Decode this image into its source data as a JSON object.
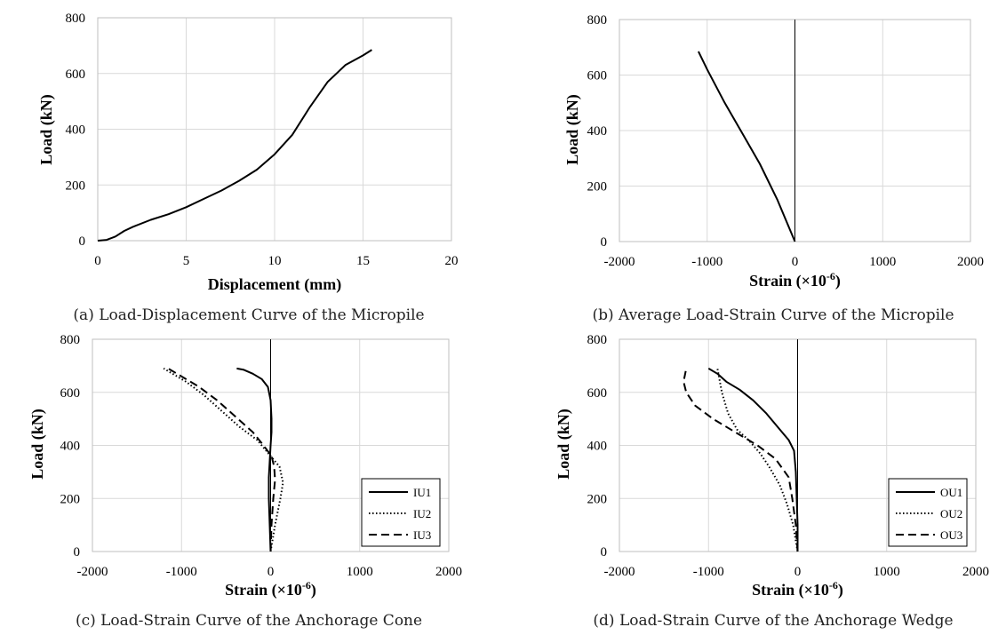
{
  "chart_data": [
    {
      "type": "line",
      "caption": "(a) Load-Displacement Curve of the Micropile",
      "xlabel": "Displacement (mm)",
      "ylabel": "Load (kN)",
      "xlim": [
        0,
        20
      ],
      "ylim": [
        0,
        800
      ],
      "xticks": [
        "0",
        "5",
        "10",
        "15",
        "20"
      ],
      "yticks": [
        "0",
        "200",
        "400",
        "600",
        "800"
      ],
      "grid": true,
      "legend": null,
      "series": [
        {
          "style": "solid",
          "x": [
            0,
            0.5,
            1,
            1.5,
            2,
            3,
            4,
            5,
            6,
            7,
            8,
            9,
            10,
            11,
            12,
            13,
            14,
            15,
            15.5
          ],
          "y": [
            0,
            3,
            15,
            35,
            50,
            75,
            95,
            120,
            150,
            180,
            215,
            255,
            310,
            380,
            480,
            570,
            630,
            665,
            685
          ]
        }
      ]
    },
    {
      "type": "line",
      "caption": "(b) Average Load-Strain Curve of the Micropile",
      "xlabel": "Strain (×10",
      "xlabel_sup": "-6",
      "xlabel_tail": ")",
      "ylabel": "Load (kN)",
      "xlim": [
        -2000,
        2000
      ],
      "ylim": [
        0,
        800
      ],
      "xticks": [
        "-2000",
        "-1000",
        "0",
        "1000",
        "2000"
      ],
      "yticks": [
        "0",
        "200",
        "400",
        "600",
        "800"
      ],
      "grid": true,
      "legend": null,
      "series": [
        {
          "style": "solid",
          "x": [
            0,
            -200,
            -400,
            -600,
            -800,
            -1000,
            -1100
          ],
          "y": [
            0,
            150,
            280,
            390,
            500,
            620,
            685
          ]
        }
      ]
    },
    {
      "type": "line",
      "caption": "(c) Load-Strain Curve of the Anchorage Cone",
      "xlabel": "Strain (×10",
      "xlabel_sup": "-6",
      "xlabel_tail": ")",
      "ylabel": "Load (kN)",
      "xlim": [
        -2000,
        2000
      ],
      "ylim": [
        0,
        800
      ],
      "xticks": [
        "-2000",
        "-1000",
        "0",
        "1000",
        "2000"
      ],
      "yticks": [
        "0",
        "200",
        "400",
        "600",
        "800"
      ],
      "grid": true,
      "legend": "bottom-right",
      "series": [
        {
          "name": "IU1",
          "style": "solid",
          "x": [
            0,
            -10,
            -20,
            -20,
            -10,
            0,
            10,
            10,
            0,
            -30,
            -100,
            -200,
            -300,
            -380
          ],
          "y": [
            0,
            100,
            200,
            280,
            340,
            400,
            450,
            500,
            570,
            620,
            650,
            670,
            685,
            690
          ]
        },
        {
          "name": "IU2",
          "style": "dotted",
          "x": [
            0,
            50,
            110,
            140,
            100,
            0,
            -150,
            -350,
            -550,
            -750,
            -950,
            -1100,
            -1200
          ],
          "y": [
            0,
            100,
            200,
            260,
            320,
            360,
            420,
            470,
            530,
            590,
            640,
            670,
            690
          ]
        },
        {
          "name": "IU3",
          "style": "dashed",
          "x": [
            0,
            10,
            30,
            50,
            40,
            10,
            -80,
            -200,
            -400,
            -600,
            -800,
            -1000,
            -1150
          ],
          "y": [
            0,
            100,
            200,
            270,
            320,
            360,
            400,
            450,
            510,
            570,
            620,
            660,
            690
          ]
        }
      ]
    },
    {
      "type": "line",
      "caption": "(d) Load-Strain Curve of the Anchorage Wedge",
      "xlabel": "Strain (×10",
      "xlabel_sup": "-6",
      "xlabel_tail": ")",
      "ylabel": "Load (kN)",
      "xlim": [
        -2000,
        2000
      ],
      "ylim": [
        0,
        800
      ],
      "xticks": [
        "-2000",
        "-1000",
        "0",
        "1000",
        "2000"
      ],
      "yticks": [
        "0",
        "200",
        "400",
        "600",
        "800"
      ],
      "grid": true,
      "legend": "bottom-right",
      "series": [
        {
          "name": "OU1",
          "style": "solid",
          "x": [
            0,
            0,
            -10,
            -20,
            -40,
            -100,
            -200,
            -350,
            -500,
            -650,
            -800,
            -900,
            -1000
          ],
          "y": [
            0,
            100,
            200,
            300,
            380,
            420,
            460,
            520,
            570,
            610,
            640,
            670,
            690
          ]
        },
        {
          "name": "OU2",
          "style": "dotted",
          "x": [
            0,
            -50,
            -120,
            -200,
            -320,
            -420,
            -550,
            -680,
            -780,
            -850,
            -900
          ],
          "y": [
            0,
            100,
            180,
            250,
            320,
            370,
            420,
            460,
            520,
            600,
            690
          ]
        },
        {
          "name": "OU3",
          "style": "dashed",
          "x": [
            0,
            -20,
            -60,
            -100,
            -250,
            -450,
            -700,
            -950,
            -1150,
            -1250,
            -1280,
            -1250
          ],
          "y": [
            0,
            100,
            200,
            280,
            350,
            400,
            450,
            500,
            550,
            600,
            640,
            690
          ]
        }
      ]
    }
  ]
}
